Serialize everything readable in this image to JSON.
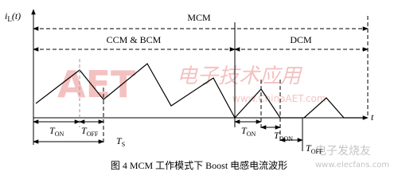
{
  "axis_label": {
    "base": "i",
    "sub": "L",
    "suffix": "(t)"
  },
  "time_label": "t",
  "modes": {
    "mcm": "MCM",
    "ccm_bcm": "CCM & BCM",
    "dcm": "DCM"
  },
  "intervals": [
    {
      "base": "T",
      "sub": "ON"
    },
    {
      "base": "T",
      "sub": "OFF"
    },
    {
      "base": "T",
      "sub": "S"
    },
    {
      "base": "T",
      "sub": "ON"
    },
    {
      "base": "T",
      "sub": "DON"
    },
    {
      "base": "T",
      "sub": "OFF"
    }
  ],
  "caption": "图 4  MCM 工作模式下 Boost 电感电流波形",
  "watermarks": [
    "AET",
    "www.ChinaAET.com",
    "电子技术应用",
    "电子发烧友",
    "www.elecfans.com"
  ]
}
